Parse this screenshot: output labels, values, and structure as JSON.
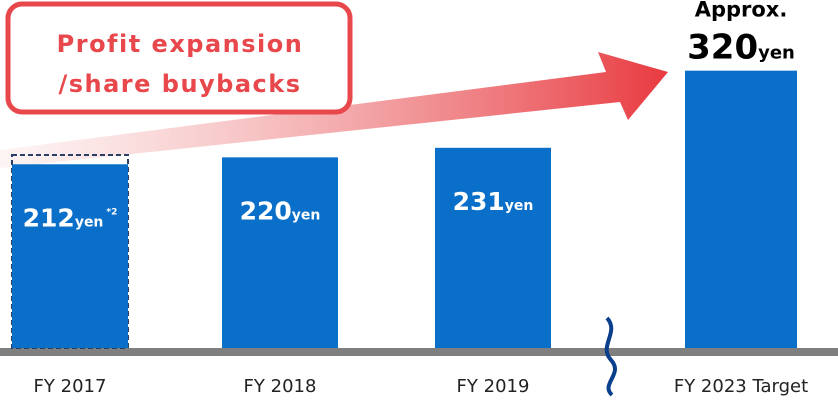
{
  "chart_data": {
    "type": "bar",
    "categories": [
      "FY 2017",
      "FY 2018",
      "FY 2019",
      "FY 2023 Target"
    ],
    "values": [
      212,
      220,
      231,
      320
    ],
    "unit": "yen",
    "footnote_mark": "*2",
    "approx_label": "Approx.",
    "annotation_lines": [
      "Profit expansion",
      "/share buybacks"
    ],
    "color": "#0a6fc8",
    "ylim": [
      0,
      360
    ]
  }
}
